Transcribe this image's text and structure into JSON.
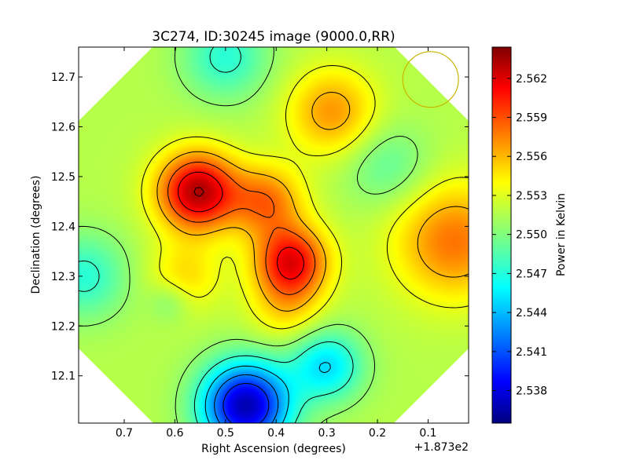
{
  "chart_data": {
    "type": "heatmap",
    "title": "3C274, ID:30245 image (9000.0,RR)",
    "xlabel": "Right Ascension (degrees)",
    "ylabel": "Declination (degrees)",
    "x_offset_label": "+1.873e2",
    "x_ticks": [
      "0.7",
      "0.6",
      "0.5",
      "0.4",
      "0.3",
      "0.2",
      "0.1"
    ],
    "x_tick_values": [
      0.7,
      0.6,
      0.5,
      0.4,
      0.3,
      0.2,
      0.1
    ],
    "xlim": [
      0.79,
      0.02
    ],
    "y_ticks": [
      "12.1",
      "12.2",
      "12.3",
      "12.4",
      "12.5",
      "12.6",
      "12.7"
    ],
    "y_tick_values": [
      12.1,
      12.2,
      12.3,
      12.4,
      12.5,
      12.6,
      12.7
    ],
    "ylim": [
      12.005,
      12.76
    ],
    "colorbar": {
      "label": "Power in Kelvin",
      "range": [
        2.5355,
        2.5644
      ],
      "ticks": [
        "2.538",
        "2.541",
        "2.544",
        "2.547",
        "2.550",
        "2.553",
        "2.556",
        "2.559",
        "2.562"
      ],
      "tick_values": [
        2.538,
        2.541,
        2.544,
        2.547,
        2.55,
        2.553,
        2.556,
        2.559,
        2.562
      ],
      "colormap": "jet"
    },
    "sources": [
      {
        "ra": 0.555,
        "dec": 12.47,
        "amp": 0.0115,
        "sigma": 0.055
      },
      {
        "ra": 0.37,
        "dec": 12.33,
        "amp": 0.0095,
        "sigma": 0.05
      },
      {
        "ra": 0.29,
        "dec": 12.63,
        "amp": 0.005,
        "sigma": 0.06
      },
      {
        "ra": 0.42,
        "dec": 12.45,
        "amp": 0.006,
        "sigma": 0.05
      },
      {
        "ra": 0.58,
        "dec": 12.3,
        "amp": 0.003,
        "sigma": 0.05
      },
      {
        "ra": 0.38,
        "dec": 12.24,
        "amp": 0.003,
        "sigma": 0.05
      },
      {
        "ra": 0.05,
        "dec": 12.37,
        "amp": 0.006,
        "sigma": 0.08
      },
      {
        "ra": 0.46,
        "dec": 12.04,
        "amp": -0.0145,
        "sigma": 0.06
      },
      {
        "ra": 0.3,
        "dec": 12.12,
        "amp": -0.006,
        "sigma": 0.05
      },
      {
        "ra": 0.78,
        "dec": 12.3,
        "amp": -0.004,
        "sigma": 0.06
      },
      {
        "ra": 0.18,
        "dec": 12.52,
        "amp": -0.0025,
        "sigma": 0.06
      },
      {
        "ra": 0.5,
        "dec": 12.74,
        "amp": -0.004,
        "sigma": 0.06
      },
      {
        "ra": 0.61,
        "dec": 12.25,
        "amp": -0.002,
        "sigma": 0.03
      }
    ],
    "background_level": 2.5515,
    "contour_levels": [
      2.5405,
      2.543,
      2.5455,
      2.548,
      2.5505,
      2.553,
      2.5555,
      2.558,
      2.5605,
      2.563
    ],
    "beam": {
      "ra": 0.095,
      "dec": 12.695,
      "radius": 0.055,
      "color": "#c8b400"
    }
  }
}
